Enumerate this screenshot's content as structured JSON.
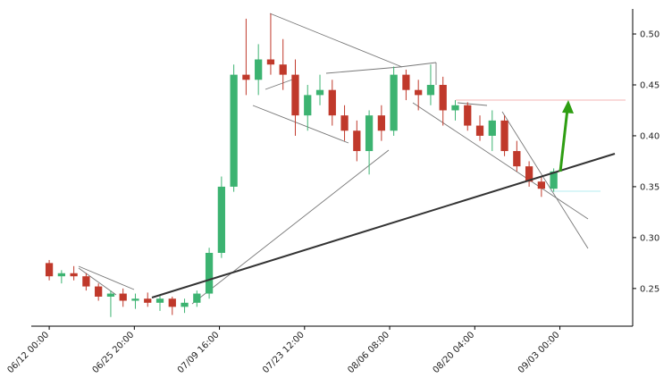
{
  "chart_data": {
    "type": "candlestick",
    "x": [
      "06/12 00:00",
      "06/14 00:00",
      "06/16 00:00",
      "06/18 00:00",
      "06/20 00:00",
      "06/22 00:00",
      "06/24 00:00",
      "06/26 00:00",
      "06/28 00:00",
      "06/30 00:00",
      "07/02 00:00",
      "07/04 00:00",
      "07/06 00:00",
      "07/08 00:00",
      "07/10 00:00",
      "07/12 00:00",
      "07/14 00:00",
      "07/16 00:00",
      "07/18 00:00",
      "07/20 00:00",
      "07/22 00:00",
      "07/24 00:00",
      "07/26 00:00",
      "07/28 00:00",
      "07/30 00:00",
      "08/01 00:00",
      "08/03 00:00",
      "08/05 00:00",
      "08/07 00:00",
      "08/09 00:00",
      "08/11 00:00",
      "08/13 00:00",
      "08/15 00:00",
      "08/17 00:00",
      "08/19 00:00",
      "08/21 00:00",
      "08/23 00:00",
      "08/25 00:00",
      "08/27 00:00",
      "08/29 00:00",
      "08/31 00:00",
      "09/02 00:00"
    ],
    "open": [
      0.275,
      0.262,
      0.265,
      0.262,
      0.252,
      0.242,
      0.245,
      0.238,
      0.24,
      0.236,
      0.24,
      0.232,
      0.236,
      0.245,
      0.285,
      0.35,
      0.46,
      0.455,
      0.475,
      0.47,
      0.46,
      0.42,
      0.44,
      0.445,
      0.42,
      0.405,
      0.385,
      0.42,
      0.405,
      0.46,
      0.445,
      0.44,
      0.45,
      0.425,
      0.43,
      0.41,
      0.4,
      0.415,
      0.385,
      0.37,
      0.355,
      0.348
    ],
    "high": [
      0.278,
      0.268,
      0.272,
      0.265,
      0.255,
      0.248,
      0.25,
      0.245,
      0.246,
      0.244,
      0.242,
      0.24,
      0.248,
      0.29,
      0.36,
      0.47,
      0.515,
      0.49,
      0.52,
      0.495,
      0.475,
      0.45,
      0.46,
      0.455,
      0.43,
      0.415,
      0.425,
      0.43,
      0.468,
      0.465,
      0.455,
      0.47,
      0.458,
      0.435,
      0.433,
      0.42,
      0.425,
      0.42,
      0.395,
      0.375,
      0.36,
      0.368
    ],
    "low": [
      0.258,
      0.255,
      0.258,
      0.248,
      0.238,
      0.222,
      0.232,
      0.23,
      0.232,
      0.228,
      0.224,
      0.226,
      0.232,
      0.24,
      0.28,
      0.345,
      0.44,
      0.44,
      0.46,
      0.445,
      0.4,
      0.405,
      0.43,
      0.41,
      0.395,
      0.375,
      0.362,
      0.395,
      0.4,
      0.435,
      0.425,
      0.43,
      0.41,
      0.415,
      0.405,
      0.395,
      0.385,
      0.38,
      0.365,
      0.35,
      0.34,
      0.345
    ],
    "close": [
      0.262,
      0.265,
      0.262,
      0.252,
      0.242,
      0.245,
      0.238,
      0.24,
      0.236,
      0.24,
      0.232,
      0.236,
      0.245,
      0.285,
      0.35,
      0.46,
      0.455,
      0.475,
      0.47,
      0.46,
      0.42,
      0.44,
      0.445,
      0.42,
      0.405,
      0.385,
      0.42,
      0.405,
      0.46,
      0.445,
      0.44,
      0.45,
      0.425,
      0.43,
      0.41,
      0.4,
      0.415,
      0.385,
      0.37,
      0.355,
      0.348,
      0.365
    ],
    "up_color": "#3cb371",
    "down_color": "#c0392b",
    "xlim": [
      "06/09 02:00",
      "09/14 20:00"
    ],
    "xticks": [
      {
        "value": "06/12 00:00",
        "label": "06/12 00:00"
      },
      {
        "value": "06/25 20:00",
        "label": "06/25 20:00"
      },
      {
        "value": "07/09 16:00",
        "label": "07/09 16:00"
      },
      {
        "value": "07/23 12:00",
        "label": "07/23 12:00"
      },
      {
        "value": "08/06 08:00",
        "label": "08/06 08:00"
      },
      {
        "value": "08/20 04:00",
        "label": "08/20 04:00"
      },
      {
        "value": "09/03 00:00",
        "label": "09/03 00:00"
      }
    ],
    "ylim": [
      0.213,
      0.5246
    ],
    "yticks": [
      0.25,
      {
        "value": 0.3,
        "label": "0.30"
      },
      0.35,
      {
        "value": 0.4,
        "label": "0.40"
      },
      0.45,
      {
        "value": 0.5,
        "label": "0.50"
      }
    ]
  }
}
